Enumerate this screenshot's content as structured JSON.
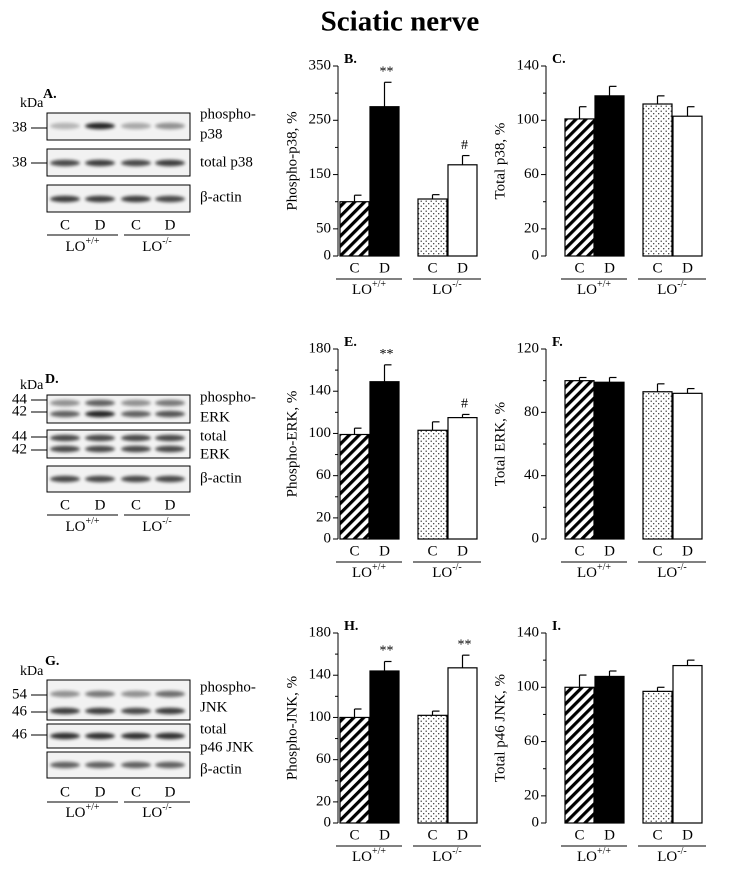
{
  "title": "Sciatic nerve",
  "blots": [
    {
      "panel": "A.",
      "unit": "kDa",
      "markers": [
        "38",
        "38"
      ],
      "labels": [
        "phospho-",
        "p38",
        "total p38",
        "β-actin"
      ],
      "lanes": [
        "C",
        "D",
        "C",
        "D"
      ],
      "groups": [
        {
          "name": "LO",
          "sup": "+/+"
        },
        {
          "name": "LO",
          "sup": "-/-"
        }
      ]
    },
    {
      "panel": "D.",
      "unit": "kDa",
      "markers": [
        "44",
        "42",
        "44",
        "42"
      ],
      "labels": [
        "phospho-",
        "ERK",
        "total",
        "ERK",
        "β-actin"
      ],
      "lanes": [
        "C",
        "D",
        "C",
        "D"
      ],
      "groups": [
        {
          "name": "LO",
          "sup": "+/+"
        },
        {
          "name": "LO",
          "sup": "-/-"
        }
      ]
    },
    {
      "panel": "G.",
      "unit": "kDa",
      "markers": [
        "54",
        "46",
        "46"
      ],
      "labels": [
        "phospho-",
        "JNK",
        "total",
        "p46 JNK",
        "β-actin"
      ],
      "lanes": [
        "C",
        "D",
        "C",
        "D"
      ],
      "groups": [
        {
          "name": "LO",
          "sup": "+/+"
        },
        {
          "name": "LO",
          "sup": "-/-"
        }
      ]
    }
  ],
  "chart_data": [
    {
      "type": "bar",
      "panel": "B.",
      "ylabel": "Phospho-p38, %",
      "categories": [
        "C",
        "D",
        "C",
        "D"
      ],
      "groups": [
        {
          "name": "LO",
          "sup": "+/+"
        },
        {
          "name": "LO",
          "sup": "-/-"
        }
      ],
      "values": [
        100,
        275,
        105,
        168
      ],
      "errors": [
        12,
        45,
        8,
        17
      ],
      "annotations": [
        null,
        "**",
        null,
        "#"
      ],
      "fills": [
        "hatch",
        "#000000",
        "dots",
        "#ffffff"
      ],
      "ylim": [
        0,
        350
      ],
      "yticks": [
        0,
        50,
        150,
        250,
        350
      ],
      "minor_yticks": [
        100,
        200,
        300
      ]
    },
    {
      "type": "bar",
      "panel": "C.",
      "ylabel": "Total p38, %",
      "categories": [
        "C",
        "D",
        "C",
        "D"
      ],
      "groups": [
        {
          "name": "LO",
          "sup": "+/+"
        },
        {
          "name": "LO",
          "sup": "-/-"
        }
      ],
      "values": [
        101,
        118,
        112,
        103
      ],
      "errors": [
        9,
        7,
        6,
        7
      ],
      "fills": [
        "hatch",
        "#000000",
        "dots",
        "#ffffff"
      ],
      "ylim": [
        0,
        140
      ],
      "yticks": [
        0,
        20,
        60,
        100,
        140
      ],
      "minor_yticks": [
        40,
        80,
        120
      ]
    },
    {
      "type": "bar",
      "panel": "E.",
      "ylabel": "Phospho-ERK, %",
      "categories": [
        "C",
        "D",
        "C",
        "D"
      ],
      "groups": [
        {
          "name": "LO",
          "sup": "+/+"
        },
        {
          "name": "LO",
          "sup": "-/-"
        }
      ],
      "values": [
        99,
        149,
        103,
        115
      ],
      "errors": [
        6,
        16,
        8,
        3
      ],
      "annotations": [
        null,
        "**",
        null,
        "#"
      ],
      "fills": [
        "hatch",
        "#000000",
        "dots",
        "#ffffff"
      ],
      "ylim": [
        0,
        180
      ],
      "yticks": [
        0,
        20,
        60,
        100,
        140,
        180
      ],
      "minor_yticks": [
        40,
        80,
        120,
        160
      ]
    },
    {
      "type": "bar",
      "panel": "F.",
      "ylabel": "Total ERK, %",
      "categories": [
        "C",
        "D",
        "C",
        "D"
      ],
      "groups": [
        {
          "name": "LO",
          "sup": "+/+"
        },
        {
          "name": "LO",
          "sup": "-/-"
        }
      ],
      "values": [
        100,
        99,
        93,
        92
      ],
      "errors": [
        2,
        3,
        5,
        3
      ],
      "fills": [
        "hatch",
        "#000000",
        "dots",
        "#ffffff"
      ],
      "ylim": [
        0,
        120
      ],
      "yticks": [
        0,
        40,
        80,
        120
      ],
      "minor_yticks": [
        20,
        60,
        100
      ]
    },
    {
      "type": "bar",
      "panel": "H.",
      "ylabel": "Phospho-JNK, %",
      "categories": [
        "C",
        "D",
        "C",
        "D"
      ],
      "groups": [
        {
          "name": "LO",
          "sup": "+/+"
        },
        {
          "name": "LO",
          "sup": "-/-"
        }
      ],
      "values": [
        100,
        144,
        102,
        147
      ],
      "errors": [
        8,
        9,
        4,
        12
      ],
      "annotations": [
        null,
        "**",
        null,
        "**"
      ],
      "fills": [
        "hatch",
        "#000000",
        "dots",
        "#ffffff"
      ],
      "ylim": [
        0,
        180
      ],
      "yticks": [
        0,
        20,
        60,
        100,
        140,
        180
      ],
      "minor_yticks": [
        40,
        80,
        120,
        160
      ]
    },
    {
      "type": "bar",
      "panel": "I.",
      "ylabel": "Total p46 JNK, %",
      "categories": [
        "C",
        "D",
        "C",
        "D"
      ],
      "groups": [
        {
          "name": "LO",
          "sup": "+/+"
        },
        {
          "name": "LO",
          "sup": "-/-"
        }
      ],
      "values": [
        100,
        108,
        97,
        116
      ],
      "errors": [
        9,
        4,
        3,
        4
      ],
      "fills": [
        "hatch",
        "#000000",
        "dots",
        "#ffffff"
      ],
      "ylim": [
        0,
        140
      ],
      "yticks": [
        0,
        20,
        60,
        100,
        140
      ],
      "minor_yticks": [
        40,
        80,
        120
      ]
    }
  ]
}
